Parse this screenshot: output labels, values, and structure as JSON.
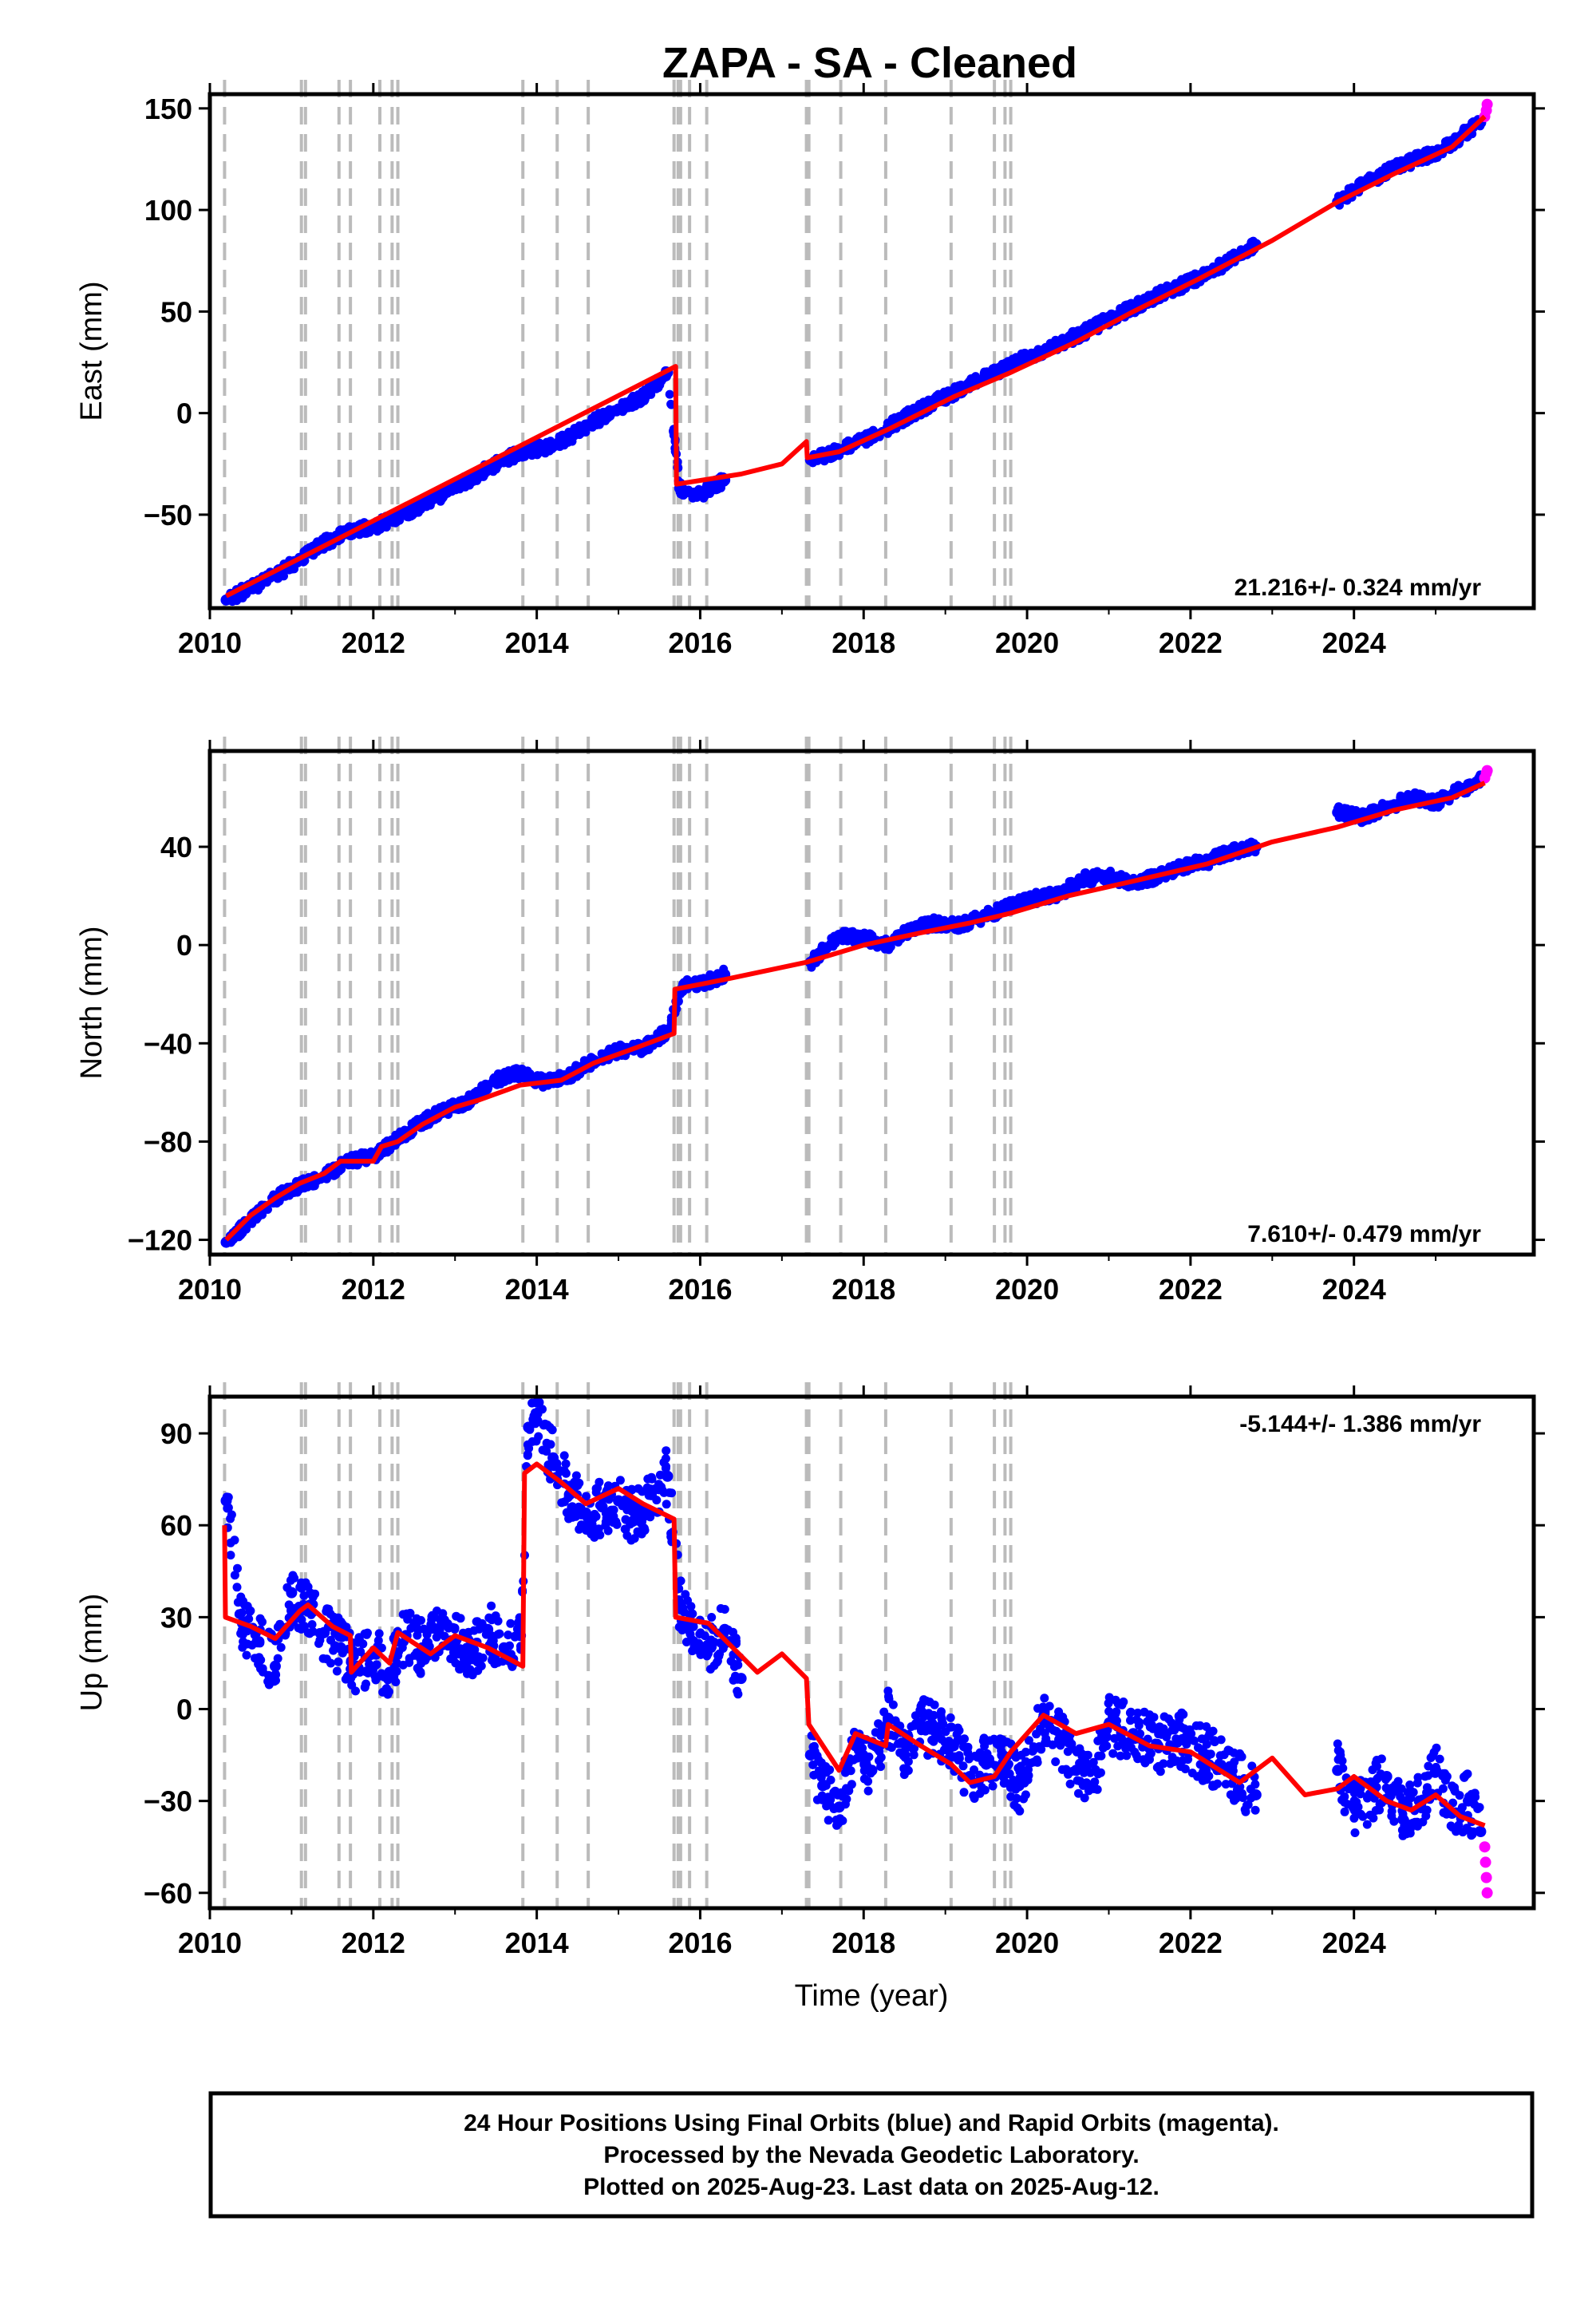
{
  "title": "ZAPA  - SA - Cleaned",
  "xlabel": "Time (year)",
  "footer_lines": [
    "24 Hour Positions Using Final Orbits (blue) and Rapid Orbits (magenta).",
    "Processed by the Nevada Geodetic Laboratory.",
    "Plotted on 2025-Aug-23. Last data on 2025-Aug-12."
  ],
  "colors": {
    "final": "#0000ff",
    "rapid": "#ff00ff",
    "model": "#ff0000",
    "steps": "#bbbbbb"
  },
  "chart_data": [
    {
      "type": "scatter",
      "ylabel": "East (mm)",
      "xlim": [
        2010,
        2026.2
      ],
      "ylim": [
        -96,
        157
      ],
      "xticks": [
        2010,
        2012,
        2014,
        2016,
        2018,
        2020,
        2022,
        2024
      ],
      "xtick_labels": [
        "2010",
        "2012",
        "2014",
        "2016",
        "2018",
        "2020",
        "2022",
        "2024"
      ],
      "yticks": [
        -50,
        0,
        50,
        100,
        150
      ],
      "ytick_labels": [
        "−50",
        "0",
        "50",
        "100",
        "150"
      ],
      "rate_label": "21.216+/- 0.324 mm/yr",
      "rate_position": "bottom-right",
      "steps": [
        2010.18,
        2011.12,
        2011.17,
        2011.58,
        2011.72,
        2012.08,
        2012.23,
        2012.3,
        2013.83,
        2014.25,
        2014.63,
        2015.68,
        2015.73,
        2015.76,
        2015.87,
        2016.08,
        2017.3,
        2017.33,
        2017.72,
        2018.27,
        2019.07,
        2019.6,
        2019.73,
        2019.8
      ],
      "model": [
        [
          2010.2,
          -90
        ],
        [
          2015.7,
          23
        ],
        [
          2015.71,
          -35
        ],
        [
          2016.5,
          -30
        ],
        [
          2017.0,
          -25
        ],
        [
          2017.3,
          -14
        ],
        [
          2017.31,
          -22
        ],
        [
          2017.7,
          -19
        ],
        [
          2018.3,
          -8
        ],
        [
          2019.1,
          8
        ],
        [
          2019.8,
          20
        ],
        [
          2020.6,
          35
        ],
        [
          2021.3,
          50
        ],
        [
          2022.1,
          66
        ],
        [
          2023.0,
          85
        ],
        [
          2023.8,
          104
        ],
        [
          2024.5,
          118
        ],
        [
          2025.2,
          131
        ],
        [
          2025.6,
          146
        ]
      ],
      "final": [
        [
          2010.2,
          -92
        ],
        [
          2010.5,
          -86
        ],
        [
          2010.8,
          -80
        ],
        [
          2011.1,
          -72
        ],
        [
          2011.4,
          -64
        ],
        [
          2011.7,
          -58
        ],
        [
          2012.0,
          -56
        ],
        [
          2012.3,
          -51
        ],
        [
          2012.6,
          -45
        ],
        [
          2012.9,
          -39
        ],
        [
          2013.2,
          -32
        ],
        [
          2013.5,
          -25
        ],
        [
          2013.8,
          -19
        ],
        [
          2014.1,
          -17
        ],
        [
          2014.4,
          -12
        ],
        [
          2014.7,
          -4
        ],
        [
          2015.0,
          2
        ],
        [
          2015.3,
          8
        ],
        [
          2015.6,
          20
        ],
        [
          2015.75,
          -37
        ],
        [
          2016.0,
          -40
        ],
        [
          2016.3,
          -33
        ],
        [
          2017.35,
          -23
        ],
        [
          2017.7,
          -18
        ],
        [
          2018.0,
          -13
        ],
        [
          2018.3,
          -7
        ],
        [
          2018.6,
          0
        ],
        [
          2018.9,
          6
        ],
        [
          2019.2,
          12
        ],
        [
          2019.5,
          18
        ],
        [
          2019.8,
          24
        ],
        [
          2020.1,
          29
        ],
        [
          2020.4,
          34
        ],
        [
          2020.7,
          40
        ],
        [
          2021.0,
          46
        ],
        [
          2021.3,
          52
        ],
        [
          2021.6,
          58
        ],
        [
          2021.9,
          63
        ],
        [
          2022.2,
          68
        ],
        [
          2022.5,
          76
        ],
        [
          2022.8,
          83
        ],
        [
          2023.8,
          104
        ],
        [
          2024.1,
          112
        ],
        [
          2024.4,
          119
        ],
        [
          2024.7,
          124
        ],
        [
          2025.0,
          128
        ],
        [
          2025.3,
          136
        ],
        [
          2025.55,
          143
        ]
      ],
      "rapid": [
        [
          2025.6,
          146
        ],
        [
          2025.62,
          149
        ],
        [
          2025.63,
          152
        ]
      ]
    },
    {
      "type": "scatter",
      "ylabel": "North (mm)",
      "xlim": [
        2010,
        2026.2
      ],
      "ylim": [
        -126,
        79
      ],
      "xticks": [
        2010,
        2012,
        2014,
        2016,
        2018,
        2020,
        2022,
        2024
      ],
      "xtick_labels": [
        "2010",
        "2012",
        "2014",
        "2016",
        "2018",
        "2020",
        "2022",
        "2024"
      ],
      "yticks": [
        -120,
        -80,
        -40,
        0,
        40
      ],
      "ytick_labels": [
        "−120",
        "−80",
        "−40",
        "0",
        "40"
      ],
      "rate_label": "7.610+/- 0.479 mm/yr",
      "rate_position": "bottom-right",
      "steps": [
        2010.18,
        2011.12,
        2011.17,
        2011.58,
        2011.72,
        2012.08,
        2012.23,
        2012.3,
        2013.83,
        2014.25,
        2014.63,
        2015.68,
        2015.73,
        2015.76,
        2015.87,
        2016.08,
        2017.3,
        2017.33,
        2017.72,
        2018.27,
        2019.07,
        2019.6,
        2019.73,
        2019.8
      ],
      "model": [
        [
          2010.2,
          -120
        ],
        [
          2010.5,
          -110
        ],
        [
          2010.8,
          -103
        ],
        [
          2011.1,
          -97
        ],
        [
          2011.4,
          -93
        ],
        [
          2011.6,
          -88
        ],
        [
          2012.0,
          -88
        ],
        [
          2012.1,
          -82
        ],
        [
          2012.3,
          -80
        ],
        [
          2012.6,
          -73
        ],
        [
          2013.0,
          -66
        ],
        [
          2013.3,
          -63
        ],
        [
          2013.8,
          -57
        ],
        [
          2014.3,
          -55
        ],
        [
          2014.7,
          -48
        ],
        [
          2015.2,
          -42
        ],
        [
          2015.68,
          -36
        ],
        [
          2015.69,
          -18
        ],
        [
          2016.3,
          -14
        ],
        [
          2017.3,
          -7
        ],
        [
          2018.0,
          0
        ],
        [
          2018.7,
          5
        ],
        [
          2019.3,
          9
        ],
        [
          2019.8,
          13
        ],
        [
          2020.5,
          20
        ],
        [
          2021.3,
          26
        ],
        [
          2022.2,
          33
        ],
        [
          2023.0,
          42
        ],
        [
          2023.8,
          48
        ],
        [
          2024.5,
          55
        ],
        [
          2025.2,
          60
        ],
        [
          2025.6,
          66
        ]
      ],
      "final": [
        [
          2010.2,
          -121
        ],
        [
          2010.5,
          -112
        ],
        [
          2010.8,
          -103
        ],
        [
          2011.1,
          -98
        ],
        [
          2011.4,
          -94
        ],
        [
          2011.7,
          -88
        ],
        [
          2012.0,
          -86
        ],
        [
          2012.3,
          -79
        ],
        [
          2012.6,
          -72
        ],
        [
          2012.9,
          -67
        ],
        [
          2013.2,
          -63
        ],
        [
          2013.5,
          -55
        ],
        [
          2013.8,
          -52
        ],
        [
          2014.1,
          -56
        ],
        [
          2014.4,
          -53
        ],
        [
          2014.7,
          -47
        ],
        [
          2015.0,
          -43
        ],
        [
          2015.3,
          -42
        ],
        [
          2015.6,
          -35
        ],
        [
          2015.8,
          -16
        ],
        [
          2016.0,
          -16
        ],
        [
          2016.3,
          -12
        ],
        [
          2017.35,
          -7
        ],
        [
          2017.7,
          4
        ],
        [
          2018.0,
          3
        ],
        [
          2018.3,
          0
        ],
        [
          2018.6,
          7
        ],
        [
          2018.9,
          9
        ],
        [
          2019.2,
          8
        ],
        [
          2019.5,
          12
        ],
        [
          2019.8,
          16
        ],
        [
          2020.1,
          19
        ],
        [
          2020.4,
          21
        ],
        [
          2020.7,
          27
        ],
        [
          2021.0,
          28
        ],
        [
          2021.3,
          25
        ],
        [
          2021.6,
          28
        ],
        [
          2021.9,
          32
        ],
        [
          2022.2,
          34
        ],
        [
          2022.5,
          38
        ],
        [
          2022.8,
          40
        ],
        [
          2023.8,
          54
        ],
        [
          2024.1,
          52
        ],
        [
          2024.4,
          56
        ],
        [
          2024.7,
          60
        ],
        [
          2025.0,
          58
        ],
        [
          2025.3,
          63
        ],
        [
          2025.55,
          67
        ]
      ],
      "rapid": [
        [
          2025.6,
          68
        ],
        [
          2025.62,
          70
        ],
        [
          2025.63,
          71
        ]
      ]
    },
    {
      "type": "scatter",
      "ylabel": "Up (mm)",
      "xlim": [
        2010,
        2026.2
      ],
      "ylim": [
        -65,
        102
      ],
      "xticks": [
        2010,
        2012,
        2014,
        2016,
        2018,
        2020,
        2022,
        2024
      ],
      "xtick_labels": [
        "2010",
        "2012",
        "2014",
        "2016",
        "2018",
        "2020",
        "2022",
        "2024"
      ],
      "yticks": [
        -60,
        -30,
        0,
        30,
        60,
        90
      ],
      "ytick_labels": [
        "−60",
        "−30",
        "0",
        "30",
        "60",
        "90"
      ],
      "rate_label": "-5.144+/- 1.386 mm/yr",
      "rate_position": "top-right",
      "steps": [
        2010.18,
        2011.12,
        2011.17,
        2011.58,
        2011.72,
        2012.08,
        2012.23,
        2012.3,
        2013.83,
        2014.25,
        2014.63,
        2015.68,
        2015.73,
        2015.76,
        2015.87,
        2016.08,
        2017.3,
        2017.33,
        2017.72,
        2018.27,
        2019.07,
        2019.6,
        2019.73,
        2019.8
      ],
      "model": [
        [
          2010.18,
          60
        ],
        [
          2010.19,
          30
        ],
        [
          2010.5,
          27
        ],
        [
          2010.8,
          23
        ],
        [
          2011.1,
          32
        ],
        [
          2011.2,
          34
        ],
        [
          2011.5,
          27
        ],
        [
          2011.72,
          24
        ],
        [
          2011.73,
          12
        ],
        [
          2012.0,
          20
        ],
        [
          2012.2,
          15
        ],
        [
          2012.3,
          25
        ],
        [
          2012.7,
          18
        ],
        [
          2013.0,
          24
        ],
        [
          2013.4,
          20
        ],
        [
          2013.83,
          14
        ],
        [
          2013.85,
          77
        ],
        [
          2014.0,
          80
        ],
        [
          2014.3,
          74
        ],
        [
          2014.6,
          67
        ],
        [
          2015.0,
          72
        ],
        [
          2015.3,
          67
        ],
        [
          2015.68,
          62
        ],
        [
          2015.7,
          30
        ],
        [
          2016.1,
          28
        ],
        [
          2016.7,
          12
        ],
        [
          2017.0,
          18
        ],
        [
          2017.3,
          10
        ],
        [
          2017.33,
          -5
        ],
        [
          2017.7,
          -20
        ],
        [
          2017.9,
          -8
        ],
        [
          2018.27,
          -12
        ],
        [
          2018.3,
          -5
        ],
        [
          2018.7,
          -12
        ],
        [
          2019.07,
          -18
        ],
        [
          2019.3,
          -24
        ],
        [
          2019.6,
          -22
        ],
        [
          2019.8,
          -14
        ],
        [
          2020.2,
          -2
        ],
        [
          2020.6,
          -8
        ],
        [
          2021.0,
          -5
        ],
        [
          2021.5,
          -12
        ],
        [
          2022.0,
          -14
        ],
        [
          2022.6,
          -24
        ],
        [
          2023.0,
          -16
        ],
        [
          2023.4,
          -28
        ],
        [
          2023.8,
          -26
        ],
        [
          2024.0,
          -22
        ],
        [
          2024.4,
          -30
        ],
        [
          2024.7,
          -33
        ],
        [
          2025.0,
          -28
        ],
        [
          2025.3,
          -35
        ],
        [
          2025.6,
          -38
        ]
      ],
      "final": [
        [
          2010.2,
          68
        ],
        [
          2010.4,
          28
        ],
        [
          2010.6,
          22
        ],
        [
          2010.8,
          14
        ],
        [
          2011.0,
          38
        ],
        [
          2011.2,
          32
        ],
        [
          2011.4,
          25
        ],
        [
          2011.6,
          20
        ],
        [
          2011.8,
          14
        ],
        [
          2012.0,
          18
        ],
        [
          2012.2,
          12
        ],
        [
          2012.4,
          24
        ],
        [
          2012.6,
          20
        ],
        [
          2012.8,
          26
        ],
        [
          2013.0,
          22
        ],
        [
          2013.2,
          18
        ],
        [
          2013.4,
          26
        ],
        [
          2013.6,
          20
        ],
        [
          2013.8,
          24
        ],
        [
          2013.9,
          92
        ],
        [
          2014.0,
          94
        ],
        [
          2014.2,
          82
        ],
        [
          2014.4,
          70
        ],
        [
          2014.6,
          64
        ],
        [
          2014.8,
          66
        ],
        [
          2015.0,
          68
        ],
        [
          2015.2,
          62
        ],
        [
          2015.4,
          70
        ],
        [
          2015.6,
          76
        ],
        [
          2015.75,
          34
        ],
        [
          2015.9,
          28
        ],
        [
          2016.1,
          20
        ],
        [
          2016.3,
          26
        ],
        [
          2016.5,
          10
        ],
        [
          2017.35,
          -15
        ],
        [
          2017.5,
          -25
        ],
        [
          2017.7,
          -32
        ],
        [
          2017.9,
          -12
        ],
        [
          2018.1,
          -20
        ],
        [
          2018.3,
          -3
        ],
        [
          2018.5,
          -15
        ],
        [
          2018.7,
          -5
        ],
        [
          2018.9,
          -8
        ],
        [
          2019.1,
          -12
        ],
        [
          2019.3,
          -22
        ],
        [
          2019.5,
          -18
        ],
        [
          2019.7,
          -15
        ],
        [
          2019.9,
          -25
        ],
        [
          2020.2,
          -3
        ],
        [
          2020.4,
          -10
        ],
        [
          2020.6,
          -20
        ],
        [
          2020.8,
          -25
        ],
        [
          2021.0,
          -5
        ],
        [
          2021.3,
          -8
        ],
        [
          2021.6,
          -12
        ],
        [
          2021.9,
          -10
        ],
        [
          2022.2,
          -15
        ],
        [
          2022.5,
          -20
        ],
        [
          2022.8,
          -28
        ],
        [
          2023.8,
          -20
        ],
        [
          2024.0,
          -32
        ],
        [
          2024.2,
          -28
        ],
        [
          2024.4,
          -22
        ],
        [
          2024.6,
          -36
        ],
        [
          2024.8,
          -30
        ],
        [
          2025.0,
          -20
        ],
        [
          2025.2,
          -34
        ],
        [
          2025.4,
          -30
        ],
        [
          2025.55,
          -40
        ]
      ],
      "rapid": [
        [
          2025.6,
          -45
        ],
        [
          2025.61,
          -50
        ],
        [
          2025.62,
          -55
        ],
        [
          2025.63,
          -60
        ]
      ]
    }
  ]
}
